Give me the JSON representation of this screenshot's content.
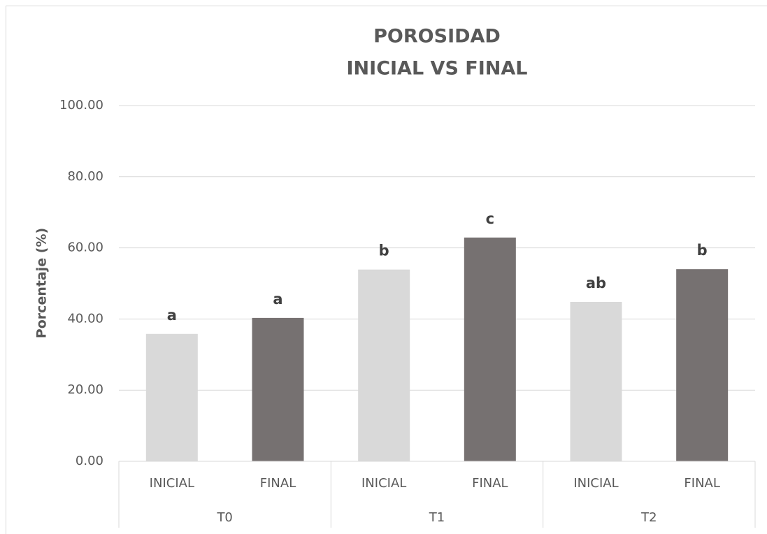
{
  "chart_data": {
    "type": "bar",
    "title": [
      "POROSIDAD",
      "INICIAL VS FINAL"
    ],
    "y_label": "Porcentaje (%)",
    "categories": [
      "INICIAL",
      "FINAL",
      "INICIAL",
      "FINAL",
      "INICIAL",
      "FINAL"
    ],
    "groups": [
      "T0",
      "T1",
      "T2"
    ],
    "values": [
      35.8,
      40.3,
      53.9,
      62.9,
      44.8,
      54.0
    ],
    "colors": [
      "#d9d9d9",
      "#767171",
      "#d9d9d9",
      "#767171",
      "#d9d9d9",
      "#767171"
    ],
    "annotations": [
      "a",
      "a",
      "b",
      "c",
      "ab",
      "b"
    ],
    "ylim": [
      0,
      100
    ],
    "yticks": [
      {
        "value": 0,
        "label": "0.00"
      },
      {
        "value": 20,
        "label": "20.00"
      },
      {
        "value": 40,
        "label": "40.00"
      },
      {
        "value": 60,
        "label": "60.00"
      },
      {
        "value": 80,
        "label": "80.00"
      },
      {
        "value": 100,
        "label": "100.00"
      }
    ],
    "grid": true
  }
}
